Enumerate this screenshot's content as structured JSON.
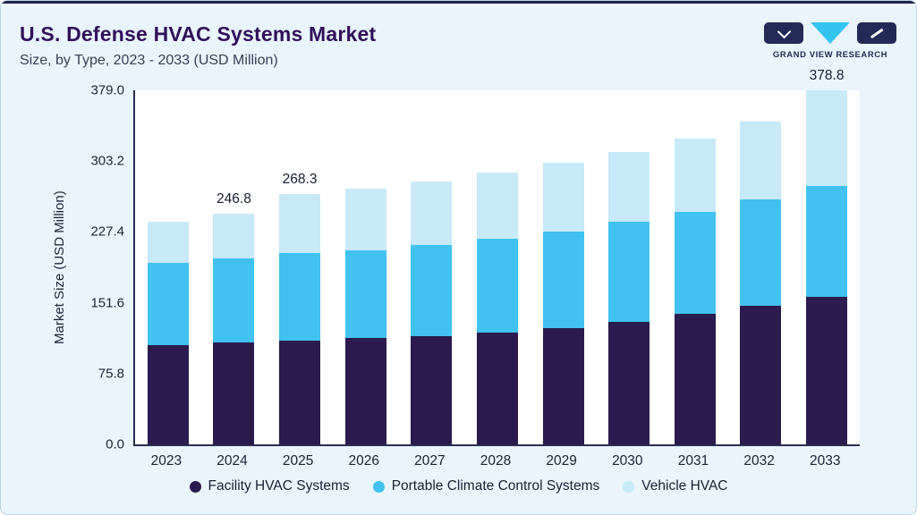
{
  "header": {
    "title": "U.S. Defense HVAC Systems Market",
    "subtitle": "Size, by Type, 2023 - 2033 (USD Million)",
    "brand": "GRAND VIEW RESEARCH"
  },
  "colors": {
    "card_background": "#e9f4fb",
    "top_accent": "#20224e",
    "title_text": "#30105a",
    "facility_hvac": "#2b1b4e",
    "portable_climate": "#41c2f0",
    "vehicle_hvac": "#c7e9f8",
    "logo_navy": "#232a56",
    "logo_cyan": "#35c3f1"
  },
  "chart_data": {
    "type": "bar",
    "stacked": true,
    "title": "U.S. Defense HVAC Systems Market",
    "subtitle": "Size, by Type, 2023 - 2033 (USD Million)",
    "xlabel": "",
    "ylabel": "Market Size (USD Million)",
    "ylim": [
      0,
      379.0
    ],
    "yticks": [
      0.0,
      75.8,
      151.6,
      227.4,
      303.2,
      379.0
    ],
    "grid": false,
    "legend_position": "bottom",
    "categories": [
      "2023",
      "2024",
      "2025",
      "2026",
      "2027",
      "2028",
      "2029",
      "2030",
      "2031",
      "2032",
      "2033"
    ],
    "series": [
      {
        "name": "Facility HVAC Systems",
        "color": "#2b1b4e",
        "values": [
          106.0,
          109.0,
          111.5,
          113.5,
          116.0,
          119.5,
          124.0,
          131.5,
          139.5,
          148.5,
          158.0
        ]
      },
      {
        "name": "Portable Climate Control Systems",
        "color": "#41c2f0",
        "values": [
          88.5,
          90.3,
          93.0,
          94.5,
          97.0,
          100.6,
          104.0,
          106.4,
          109.5,
          114.0,
          119.0
        ]
      },
      {
        "name": "Vehicle HVAC",
        "color": "#c7e9f8",
        "values": [
          43.5,
          47.5,
          63.8,
          66.0,
          68.5,
          70.5,
          73.2,
          75.5,
          78.5,
          83.5,
          101.8
        ]
      }
    ],
    "totals": [
      238.0,
      246.8,
      268.3,
      274.0,
      281.5,
      290.6,
      301.2,
      313.4,
      327.5,
      346.0,
      378.8
    ],
    "bar_labels": [
      "",
      "246.8",
      "268.3",
      "",
      "",
      "",
      "",
      "",
      "",
      "",
      "378.8"
    ]
  }
}
